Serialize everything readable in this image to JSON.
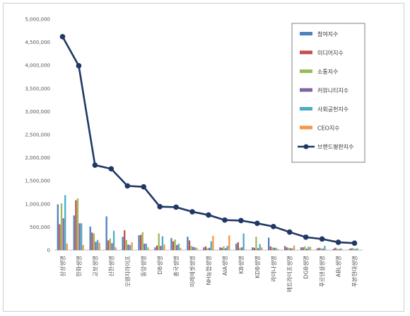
{
  "chart_data": {
    "type": "bar",
    "title": "",
    "xlabel": "",
    "ylabel": "",
    "ylim": [
      0,
      5000000
    ],
    "yticks": [
      "0",
      "500,000",
      "1,000,000",
      "1,500,000",
      "2,000,000",
      "2,500,000",
      "3,000,000",
      "3,500,000",
      "4,000,000",
      "4,500,000",
      "5,000,000"
    ],
    "ytick_values": [
      0,
      500000,
      1000000,
      1500000,
      2000000,
      2500000,
      3000000,
      3500000,
      4000000,
      4500000,
      5000000
    ],
    "grid": false,
    "legend_position": "right",
    "categories": [
      "삼성생명",
      "한화생명",
      "교보생명",
      "신한생명",
      "오렌지라이프",
      "동양생명",
      "DB생명",
      "흥국생명",
      "미래에셋생명",
      "NH농협생명",
      "AIA생명",
      "KB생명",
      "KDB생명",
      "라이나생명",
      "메트라이프생명",
      "DGB생명",
      "푸르덴셜생명",
      "ABL생명",
      "푸본현대생명"
    ],
    "series": [
      {
        "name": "참여지수",
        "color": "#4f81bd",
        "values": [
          990000,
          750000,
          510000,
          730000,
          290000,
          320000,
          60000,
          260000,
          290000,
          60000,
          60000,
          140000,
          60000,
          270000,
          90000,
          60000,
          40000,
          30000,
          30000
        ]
      },
      {
        "name": "미디어지수",
        "color": "#c0504d",
        "values": [
          560000,
          1080000,
          380000,
          210000,
          430000,
          330000,
          100000,
          190000,
          210000,
          80000,
          50000,
          170000,
          50000,
          80000,
          60000,
          60000,
          50000,
          50000,
          40000
        ]
      },
      {
        "name": "소통지수",
        "color": "#9bbb59",
        "values": [
          1010000,
          1120000,
          360000,
          250000,
          220000,
          390000,
          360000,
          230000,
          90000,
          40000,
          80000,
          50000,
          290000,
          60000,
          50000,
          80000,
          40000,
          30000,
          40000
        ]
      },
      {
        "name": "커뮤니티지수",
        "color": "#8064a2",
        "values": [
          690000,
          580000,
          180000,
          150000,
          120000,
          140000,
          90000,
          110000,
          70000,
          50000,
          40000,
          60000,
          40000,
          50000,
          40000,
          30000,
          30000,
          20000,
          20000
        ]
      },
      {
        "name": "사회공헌지수",
        "color": "#4bacc6",
        "values": [
          1190000,
          580000,
          220000,
          420000,
          110000,
          140000,
          300000,
          140000,
          60000,
          190000,
          90000,
          360000,
          130000,
          50000,
          40000,
          70000,
          90000,
          40000,
          40000
        ]
      },
      {
        "name": "CEO지수",
        "color": "#f79646",
        "values": [
          140000,
          110000,
          160000,
          60000,
          170000,
          60000,
          120000,
          50000,
          50000,
          310000,
          320000,
          10000,
          60000,
          20000,
          100000,
          70000,
          10000,
          10000,
          10000
        ]
      }
    ],
    "line": {
      "name": "브랜드평판지수",
      "color": "#1f3864",
      "values": [
        4620000,
        3990000,
        1840000,
        1760000,
        1390000,
        1370000,
        940000,
        930000,
        830000,
        760000,
        650000,
        640000,
        580000,
        510000,
        390000,
        280000,
        240000,
        170000,
        150000
      ]
    }
  }
}
